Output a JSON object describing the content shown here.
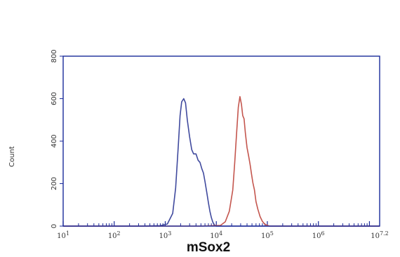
{
  "chart_data": {
    "type": "line",
    "title": "",
    "xlabel": "mSox2",
    "ylabel": "Count",
    "x_scale": "log",
    "xlim": [
      10,
      15850000
    ],
    "ylim": [
      0,
      800
    ],
    "y_ticks": [
      {
        "value": 0,
        "label": "0"
      },
      {
        "value": 200,
        "label": "200"
      },
      {
        "value": 400,
        "label": "400"
      },
      {
        "value": 600,
        "label": "600"
      },
      {
        "value": 800,
        "label": "800"
      }
    ],
    "x_ticks": [
      {
        "value": 10,
        "base": "10",
        "exp": "1"
      },
      {
        "value": 100,
        "base": "10",
        "exp": "2"
      },
      {
        "value": 1000,
        "base": "10",
        "exp": "3"
      },
      {
        "value": 10000,
        "base": "10",
        "exp": "4"
      },
      {
        "value": 100000,
        "base": "10",
        "exp": "5"
      },
      {
        "value": 1000000,
        "base": "10",
        "exp": "6"
      },
      {
        "value": 15850000,
        "base": "10",
        "exp": "7.2"
      }
    ],
    "grid": false,
    "colors": {
      "axis": "#1a2a9a",
      "blue_series": "#404a9e",
      "red_series": "#c4564e",
      "label": "#333333"
    },
    "series": [
      {
        "color": "#404a9e",
        "x": [
          10,
          300,
          800,
          1100,
          1400,
          1600,
          1800,
          1950,
          2100,
          2300,
          2500,
          2700,
          3000,
          3300,
          3600,
          4000,
          4400,
          4800,
          5200,
          5600,
          6000,
          6500,
          7000,
          7500,
          8000,
          8500,
          9000,
          9500,
          10000,
          12000,
          20000,
          100000,
          15850000
        ],
        "y": [
          0,
          0,
          2,
          10,
          60,
          180,
          380,
          520,
          585,
          600,
          580,
          500,
          420,
          360,
          340,
          340,
          310,
          300,
          270,
          250,
          210,
          160,
          110,
          70,
          40,
          20,
          8,
          3,
          0,
          0,
          0,
          0,
          0
        ]
      },
      {
        "color": "#c4564e",
        "x": [
          10,
          5000,
          12000,
          15000,
          18000,
          21000,
          23000,
          25000,
          27000,
          29000,
          31000,
          33000,
          35000,
          37000,
          40000,
          43000,
          46000,
          49000,
          52000,
          56000,
          60000,
          65000,
          72000,
          80000,
          90000,
          110000,
          200000,
          15850000
        ],
        "y": [
          0,
          0,
          3,
          20,
          70,
          170,
          300,
          440,
          560,
          610,
          575,
          520,
          505,
          440,
          370,
          330,
          290,
          245,
          205,
          170,
          115,
          80,
          45,
          22,
          8,
          0,
          0,
          0
        ]
      }
    ]
  }
}
